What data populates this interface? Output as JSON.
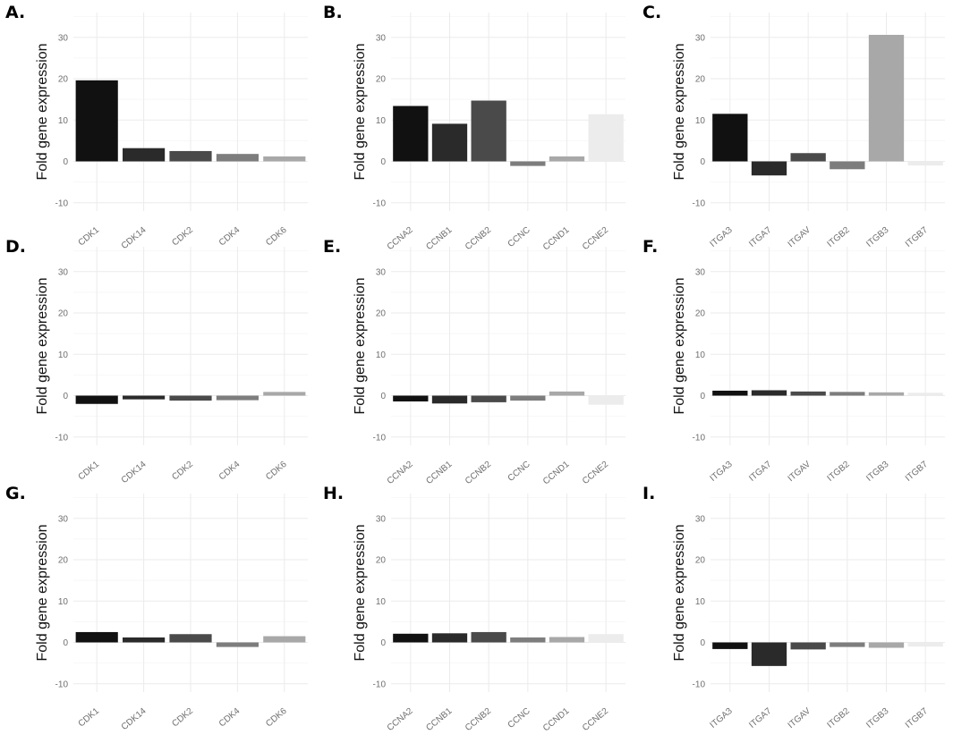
{
  "chart_data": [
    {
      "type": "bar",
      "panel": "A.",
      "ylabel": "Fold gene expression",
      "ylim": [
        -12,
        36
      ],
      "yticks": [
        -10,
        0,
        10,
        20,
        30
      ],
      "categories": [
        "CDK1",
        "CDK14",
        "CDK2",
        "CDK4",
        "CDK6"
      ],
      "values": [
        19.6,
        3.2,
        2.5,
        1.8,
        1.2
      ],
      "colors": [
        "#111111",
        "#2a2a2a",
        "#4a4a4a",
        "#7d7d7d",
        "#a8a8a8"
      ]
    },
    {
      "type": "bar",
      "panel": "B.",
      "ylabel": "Fold gene expression",
      "ylim": [
        -12,
        36
      ],
      "yticks": [
        -10,
        0,
        10,
        20,
        30
      ],
      "categories": [
        "CCNA2",
        "CCNB1",
        "CCNB2",
        "CCNC",
        "CCND1",
        "CCNE2"
      ],
      "values": [
        13.4,
        9.1,
        14.7,
        -1.1,
        1.2,
        11.4
      ],
      "colors": [
        "#111111",
        "#2a2a2a",
        "#4a4a4a",
        "#7d7d7d",
        "#a8a8a8",
        "#ececec"
      ]
    },
    {
      "type": "bar",
      "panel": "C.",
      "ylabel": "Fold gene expression",
      "ylim": [
        -12,
        36
      ],
      "yticks": [
        -10,
        0,
        10,
        20,
        30
      ],
      "categories": [
        "ITGA3",
        "ITGA7",
        "ITGAV",
        "ITGB2",
        "ITGB3",
        "ITGB7"
      ],
      "values": [
        11.5,
        -3.4,
        2.0,
        -1.9,
        30.6,
        -1.0
      ],
      "colors": [
        "#111111",
        "#2a2a2a",
        "#4a4a4a",
        "#7d7d7d",
        "#a8a8a8",
        "#ececec"
      ]
    },
    {
      "type": "bar",
      "panel": "D.",
      "ylabel": "Fold gene expression",
      "ylim": [
        -12,
        36
      ],
      "yticks": [
        -10,
        0,
        10,
        20,
        30
      ],
      "categories": [
        "CDK1",
        "CDK14",
        "CDK2",
        "CDK4",
        "CDK6"
      ],
      "values": [
        -2.0,
        -0.9,
        -1.2,
        -1.1,
        0.9
      ],
      "colors": [
        "#111111",
        "#2a2a2a",
        "#4a4a4a",
        "#7d7d7d",
        "#a8a8a8"
      ]
    },
    {
      "type": "bar",
      "panel": "E.",
      "ylabel": "Fold gene expression",
      "ylim": [
        -12,
        36
      ],
      "yticks": [
        -10,
        0,
        10,
        20,
        30
      ],
      "categories": [
        "CCNA2",
        "CCNB1",
        "CCNB2",
        "CCNC",
        "CCND1",
        "CCNE2"
      ],
      "values": [
        -1.4,
        -1.9,
        -1.6,
        -1.2,
        1.0,
        -2.2
      ],
      "colors": [
        "#111111",
        "#2a2a2a",
        "#4a4a4a",
        "#7d7d7d",
        "#a8a8a8",
        "#ececec"
      ]
    },
    {
      "type": "bar",
      "panel": "F.",
      "ylabel": "Fold gene expression",
      "ylim": [
        -12,
        36
      ],
      "yticks": [
        -10,
        0,
        10,
        20,
        30
      ],
      "categories": [
        "ITGA3",
        "ITGA7",
        "ITGAV",
        "ITGB2",
        "ITGB3",
        "ITGB7"
      ],
      "values": [
        1.2,
        1.3,
        1.0,
        0.9,
        0.8,
        0.7
      ],
      "colors": [
        "#111111",
        "#2a2a2a",
        "#4a4a4a",
        "#7d7d7d",
        "#a8a8a8",
        "#ececec"
      ]
    },
    {
      "type": "bar",
      "panel": "G.",
      "ylabel": "Fold gene expression",
      "ylim": [
        -12,
        36
      ],
      "yticks": [
        -10,
        0,
        10,
        20,
        30
      ],
      "categories": [
        "CDK1",
        "CDK14",
        "CDK2",
        "CDK4",
        "CDK6"
      ],
      "values": [
        2.5,
        1.2,
        2.0,
        -1.1,
        1.5
      ],
      "colors": [
        "#111111",
        "#2a2a2a",
        "#4a4a4a",
        "#7d7d7d",
        "#a8a8a8"
      ]
    },
    {
      "type": "bar",
      "panel": "H.",
      "ylabel": "Fold gene expression",
      "ylim": [
        -12,
        36
      ],
      "yticks": [
        -10,
        0,
        10,
        20,
        30
      ],
      "categories": [
        "CCNA2",
        "CCNB1",
        "CCNB2",
        "CCNC",
        "CCND1",
        "CCNE2"
      ],
      "values": [
        2.1,
        2.2,
        2.5,
        1.2,
        1.3,
        2.0
      ],
      "colors": [
        "#111111",
        "#2a2a2a",
        "#4a4a4a",
        "#7d7d7d",
        "#a8a8a8",
        "#ececec"
      ]
    },
    {
      "type": "bar",
      "panel": "I.",
      "ylabel": "Fold gene expression",
      "ylim": [
        -12,
        36
      ],
      "yticks": [
        -10,
        0,
        10,
        20,
        30
      ],
      "categories": [
        "ITGA3",
        "ITGA7",
        "ITGAV",
        "ITGB2",
        "ITGB3",
        "ITGB7"
      ],
      "values": [
        -1.6,
        -5.7,
        -1.7,
        -1.1,
        -1.3,
        -1.0
      ],
      "colors": [
        "#111111",
        "#2a2a2a",
        "#4a4a4a",
        "#7d7d7d",
        "#a8a8a8",
        "#ececec"
      ]
    }
  ]
}
